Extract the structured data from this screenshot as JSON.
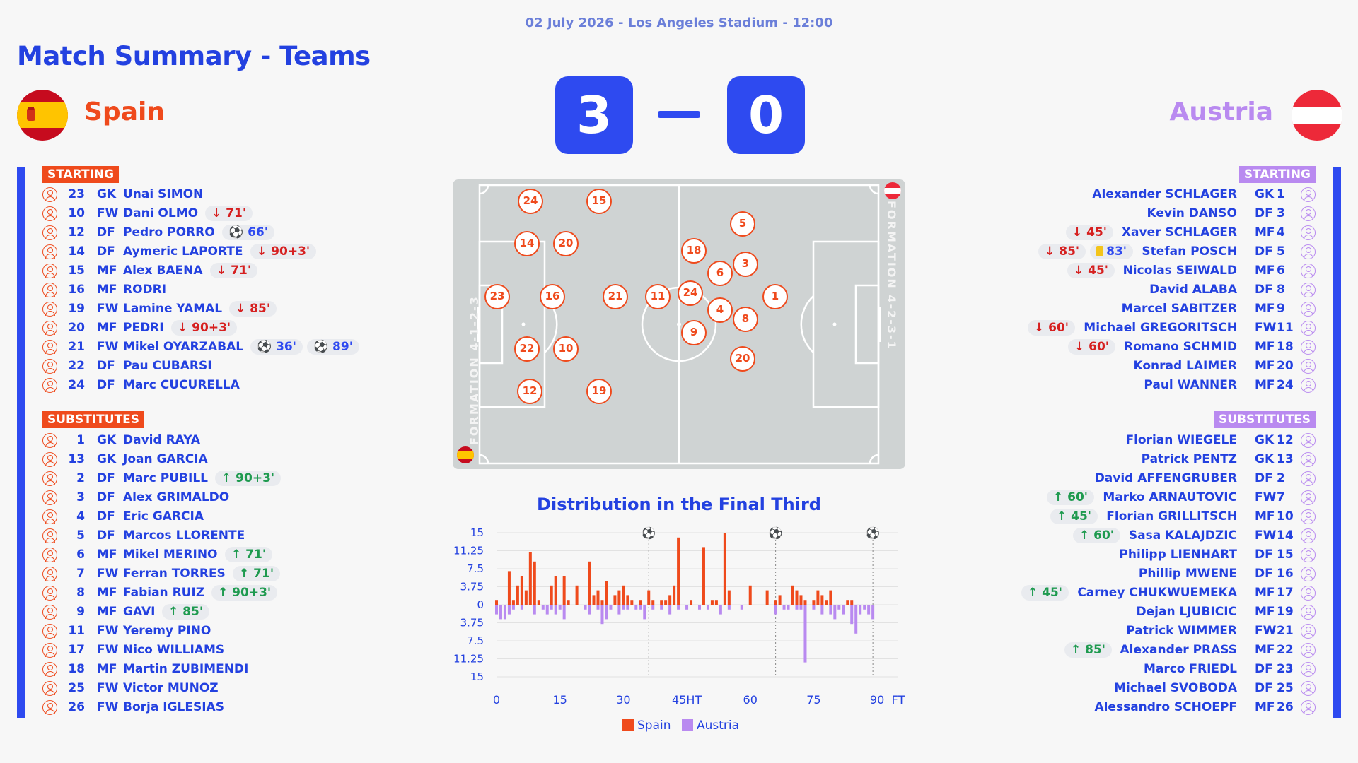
{
  "meta": "02 July 2026 - Los Angeles Stadium - 12:00",
  "title": "Match Summary - Teams",
  "home": {
    "name": "Spain",
    "score": "3",
    "section_starting": "STARTING",
    "section_subs": "SUBSTITUTES",
    "formation": "FORMATION 4-1-2-3",
    "color": "#ef4a1c",
    "starting": [
      {
        "num": "23",
        "pos": "GK",
        "name": "Unai SIMON",
        "events": []
      },
      {
        "num": "10",
        "pos": "FW",
        "name": "Dani OLMO",
        "events": [
          {
            "type": "out",
            "text": "↓ 71'"
          }
        ]
      },
      {
        "num": "12",
        "pos": "DF",
        "name": "Pedro PORRO",
        "events": [
          {
            "type": "goal",
            "text": "⚽ 66'"
          }
        ]
      },
      {
        "num": "14",
        "pos": "DF",
        "name": "Aymeric LAPORTE",
        "events": [
          {
            "type": "out",
            "text": "↓ 90+3'"
          }
        ]
      },
      {
        "num": "15",
        "pos": "MF",
        "name": "Alex BAENA",
        "events": [
          {
            "type": "out",
            "text": "↓ 71'"
          }
        ]
      },
      {
        "num": "16",
        "pos": "MF",
        "name": "RODRI",
        "events": []
      },
      {
        "num": "19",
        "pos": "FW",
        "name": "Lamine YAMAL",
        "events": [
          {
            "type": "out",
            "text": "↓ 85'"
          }
        ]
      },
      {
        "num": "20",
        "pos": "MF",
        "name": "PEDRI",
        "events": [
          {
            "type": "out",
            "text": "↓ 90+3'"
          }
        ]
      },
      {
        "num": "21",
        "pos": "FW",
        "name": "Mikel OYARZABAL",
        "events": [
          {
            "type": "goal",
            "text": "⚽ 36'"
          },
          {
            "type": "goal",
            "text": "⚽ 89'"
          }
        ]
      },
      {
        "num": "22",
        "pos": "DF",
        "name": "Pau CUBARSI",
        "events": []
      },
      {
        "num": "24",
        "pos": "DF",
        "name": "Marc CUCURELLA",
        "events": []
      }
    ],
    "subs": [
      {
        "num": "1",
        "pos": "GK",
        "name": "David RAYA",
        "events": []
      },
      {
        "num": "13",
        "pos": "GK",
        "name": "Joan GARCIA",
        "events": []
      },
      {
        "num": "2",
        "pos": "DF",
        "name": "Marc PUBILL",
        "events": [
          {
            "type": "in",
            "text": "↑ 90+3'"
          }
        ]
      },
      {
        "num": "3",
        "pos": "DF",
        "name": "Alex GRIMALDO",
        "events": []
      },
      {
        "num": "4",
        "pos": "DF",
        "name": "Eric GARCIA",
        "events": []
      },
      {
        "num": "5",
        "pos": "DF",
        "name": "Marcos LLORENTE",
        "events": []
      },
      {
        "num": "6",
        "pos": "MF",
        "name": "Mikel MERINO",
        "events": [
          {
            "type": "in",
            "text": "↑ 71'"
          }
        ]
      },
      {
        "num": "7",
        "pos": "FW",
        "name": "Ferran TORRES",
        "events": [
          {
            "type": "in",
            "text": "↑ 71'"
          }
        ]
      },
      {
        "num": "8",
        "pos": "MF",
        "name": "Fabian RUIZ",
        "events": [
          {
            "type": "in",
            "text": "↑ 90+3'"
          }
        ]
      },
      {
        "num": "9",
        "pos": "MF",
        "name": "GAVI",
        "events": [
          {
            "type": "in",
            "text": "↑ 85'"
          }
        ]
      },
      {
        "num": "11",
        "pos": "FW",
        "name": "Yeremy PINO",
        "events": []
      },
      {
        "num": "17",
        "pos": "FW",
        "name": "Nico WILLIAMS",
        "events": []
      },
      {
        "num": "18",
        "pos": "MF",
        "name": "Martin ZUBIMENDI",
        "events": []
      },
      {
        "num": "25",
        "pos": "FW",
        "name": "Victor MUNOZ",
        "events": []
      },
      {
        "num": "26",
        "pos": "FW",
        "name": "Borja IGLESIAS",
        "events": []
      }
    ],
    "pitch_numbers": [
      "24",
      "15",
      "14",
      "20",
      "23",
      "16",
      "21",
      "22",
      "10",
      "12",
      "19"
    ]
  },
  "away": {
    "name": "Austria",
    "score": "0",
    "section_starting": "STARTING",
    "section_subs": "SUBSTITUTES",
    "formation": "FORMATION 4-2-3-1",
    "color": "#b98af0",
    "starting": [
      {
        "num": "1",
        "pos": "GK",
        "name": "Alexander SCHLAGER",
        "events": []
      },
      {
        "num": "3",
        "pos": "DF",
        "name": "Kevin DANSO",
        "events": []
      },
      {
        "num": "4",
        "pos": "MF",
        "name": "Xaver SCHLAGER",
        "events": [
          {
            "type": "out",
            "text": "↓ 45'"
          }
        ]
      },
      {
        "num": "5",
        "pos": "DF",
        "name": "Stefan POSCH",
        "events": [
          {
            "type": "out",
            "text": "↓ 85'"
          },
          {
            "type": "yellow",
            "text": "83'"
          }
        ]
      },
      {
        "num": "6",
        "pos": "MF",
        "name": "Nicolas SEIWALD",
        "events": [
          {
            "type": "out",
            "text": "↓ 45'"
          }
        ]
      },
      {
        "num": "8",
        "pos": "DF",
        "name": "David ALABA",
        "events": []
      },
      {
        "num": "9",
        "pos": "MF",
        "name": "Marcel SABITZER",
        "events": []
      },
      {
        "num": "11",
        "pos": "FW",
        "name": "Michael GREGORITSCH",
        "events": [
          {
            "type": "out",
            "text": "↓ 60'"
          }
        ]
      },
      {
        "num": "18",
        "pos": "MF",
        "name": "Romano SCHMID",
        "events": [
          {
            "type": "out",
            "text": "↓ 60'"
          }
        ]
      },
      {
        "num": "20",
        "pos": "MF",
        "name": "Konrad LAIMER",
        "events": []
      },
      {
        "num": "24",
        "pos": "MF",
        "name": "Paul WANNER",
        "events": []
      }
    ],
    "subs": [
      {
        "num": "12",
        "pos": "GK",
        "name": "Florian WIEGELE",
        "events": []
      },
      {
        "num": "13",
        "pos": "GK",
        "name": "Patrick PENTZ",
        "events": []
      },
      {
        "num": "2",
        "pos": "DF",
        "name": "David AFFENGRUBER",
        "events": []
      },
      {
        "num": "7",
        "pos": "FW",
        "name": "Marko ARNAUTOVIC",
        "events": [
          {
            "type": "in",
            "text": "↑ 60'"
          }
        ]
      },
      {
        "num": "10",
        "pos": "MF",
        "name": "Florian GRILLITSCH",
        "events": [
          {
            "type": "in",
            "text": "↑ 45'"
          }
        ]
      },
      {
        "num": "14",
        "pos": "FW",
        "name": "Sasa KALAJDZIC",
        "events": [
          {
            "type": "in",
            "text": "↑ 60'"
          }
        ]
      },
      {
        "num": "15",
        "pos": "DF",
        "name": "Philipp LIENHART",
        "events": []
      },
      {
        "num": "16",
        "pos": "DF",
        "name": "Phillip MWENE",
        "events": []
      },
      {
        "num": "17",
        "pos": "MF",
        "name": "Carney CHUKWUEMEKA",
        "events": [
          {
            "type": "in",
            "text": "↑ 45'"
          }
        ]
      },
      {
        "num": "19",
        "pos": "MF",
        "name": "Dejan LJUBICIC",
        "events": []
      },
      {
        "num": "21",
        "pos": "FW",
        "name": "Patrick WIMMER",
        "events": []
      },
      {
        "num": "22",
        "pos": "MF",
        "name": "Alexander PRASS",
        "events": [
          {
            "type": "in",
            "text": "↑ 85'"
          }
        ]
      },
      {
        "num": "23",
        "pos": "DF",
        "name": "Marco FRIEDL",
        "events": []
      },
      {
        "num": "25",
        "pos": "DF",
        "name": "Michael SVOBODA",
        "events": []
      },
      {
        "num": "26",
        "pos": "MF",
        "name": "Alessandro SCHOEPF",
        "events": []
      }
    ],
    "pitch_numbers": [
      "5",
      "18",
      "3",
      "6",
      "1",
      "11",
      "24",
      "4",
      "8",
      "9",
      "20"
    ]
  },
  "chart_data": {
    "type": "bar",
    "title": "Distribution in the Final Third",
    "x_ticks": [
      "0",
      "15",
      "30",
      "45HT",
      "60",
      "75",
      "90",
      "FT"
    ],
    "y_ticks": [
      "15",
      "11.25",
      "7.5",
      "3.75",
      "0",
      "3.75",
      "7.5",
      "11.25",
      "15"
    ],
    "ylim": [
      -15,
      15
    ],
    "goal_minutes": [
      36,
      66,
      89
    ],
    "series": [
      {
        "name": "Spain",
        "color": "#ef4a1c",
        "values": [
          1,
          0,
          0,
          7,
          1,
          4,
          6,
          3,
          11,
          9,
          1,
          0,
          0,
          4,
          6,
          0,
          6,
          1,
          0,
          4,
          0,
          0,
          9,
          2,
          3,
          1,
          5,
          0,
          2,
          3,
          4,
          2,
          1,
          0,
          1,
          0,
          3,
          1,
          0,
          1,
          1,
          2,
          4,
          14,
          0,
          0,
          1,
          0,
          0,
          12,
          0,
          1,
          1,
          0,
          15,
          3,
          0,
          0,
          0,
          0,
          4,
          0,
          0,
          0,
          3,
          0,
          1,
          2,
          0,
          0,
          4,
          3,
          2,
          1,
          0,
          1,
          3,
          2,
          1,
          3,
          0,
          0,
          0,
          1,
          1,
          0,
          0,
          0,
          0,
          0
        ]
      },
      {
        "name": "Austria",
        "color": "#b98af0",
        "values": [
          -2,
          -3,
          -3,
          -2,
          -1,
          0,
          -1,
          0,
          0,
          -2,
          0,
          -1,
          -2,
          -1,
          -2,
          -1,
          -3,
          0,
          0,
          0,
          0,
          -1,
          -2,
          0,
          -1,
          -4,
          -3,
          -1,
          0,
          -2,
          -1,
          -1,
          0,
          -1,
          -1,
          -3,
          0,
          -1,
          0,
          -1,
          0,
          -2,
          0,
          -1,
          0,
          -1,
          0,
          0,
          -1,
          0,
          -1,
          0,
          0,
          -2,
          0,
          -1,
          0,
          0,
          -1,
          0,
          0,
          0,
          0,
          0,
          0,
          0,
          -2,
          0,
          -1,
          -1,
          0,
          -1,
          -1,
          -12,
          0,
          -1,
          0,
          -2,
          0,
          -2,
          -3,
          -1,
          -2,
          0,
          -4,
          -6,
          -2,
          -1,
          -2,
          -3
        ]
      }
    ],
    "legend": [
      "Spain",
      "Austria"
    ]
  }
}
